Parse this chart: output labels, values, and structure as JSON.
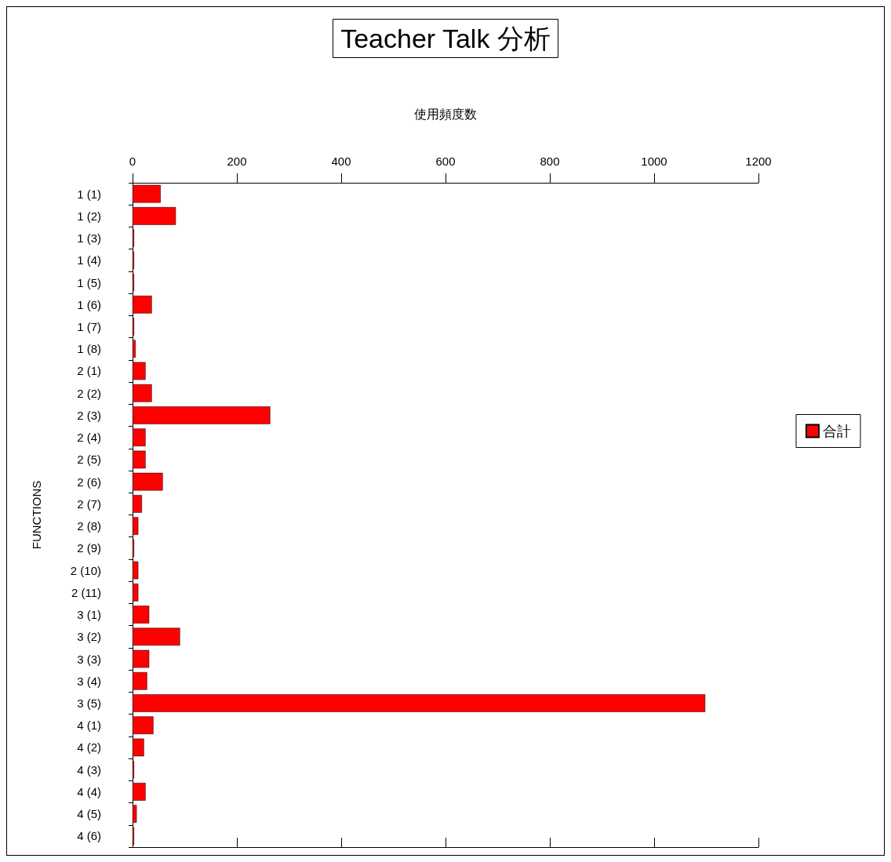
{
  "chart_data": {
    "type": "bar",
    "orientation": "horizontal",
    "title": "Teacher Talk 分析",
    "xlabel": "使用頻度数",
    "ylabel": "FUNCTIONS",
    "categories": [
      "1 (1)",
      "1 (2)",
      "1 (3)",
      "1 (4)",
      "1 (5)",
      "1 (6)",
      "1 (7)",
      "1 (8)",
      "2 (1)",
      "2 (2)",
      "2 (3)",
      "2 (4)",
      "2 (5)",
      "2 (6)",
      "2 (7)",
      "2 (8)",
      "2 (9)",
      "2 (10)",
      "2 (11)",
      "3 (1)",
      "3 (2)",
      "3 (3)",
      "3 (4)",
      "3 (5)",
      "4 (1)",
      "4 (2)",
      "4 (3)",
      "4 (4)",
      "4 (5)",
      "4 (6)"
    ],
    "series": [
      {
        "name": "合計",
        "color": "#ff0000",
        "values": [
          54,
          83,
          3,
          3,
          3,
          37,
          3,
          6,
          25,
          37,
          264,
          25,
          25,
          58,
          18,
          11,
          3,
          11,
          11,
          32,
          91,
          32,
          28,
          1098,
          40,
          22,
          3,
          25,
          8,
          3
        ]
      }
    ],
    "xlim": [
      0,
      1200
    ],
    "xticks": [
      0,
      200,
      400,
      600,
      800,
      1000,
      1200
    ],
    "grid": false,
    "legend": "right"
  }
}
